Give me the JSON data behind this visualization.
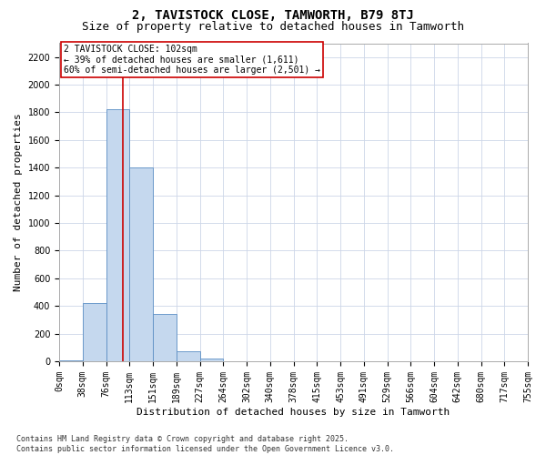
{
  "title_line1": "2, TAVISTOCK CLOSE, TAMWORTH, B79 8TJ",
  "title_line2": "Size of property relative to detached houses in Tamworth",
  "xlabel": "Distribution of detached houses by size in Tamworth",
  "ylabel": "Number of detached properties",
  "bar_values": [
    5,
    420,
    1820,
    1400,
    340,
    75,
    20,
    0,
    0,
    0,
    0,
    0,
    0,
    0,
    0,
    0,
    0,
    0,
    0,
    0
  ],
  "bar_labels": [
    "0sqm",
    "38sqm",
    "76sqm",
    "113sqm",
    "151sqm",
    "189sqm",
    "227sqm",
    "264sqm",
    "302sqm",
    "340sqm",
    "378sqm",
    "415sqm",
    "453sqm",
    "491sqm",
    "529sqm",
    "566sqm",
    "604sqm",
    "642sqm",
    "680sqm",
    "717sqm",
    "755sqm"
  ],
  "bar_color": "#c5d8ee",
  "bar_edge_color": "#5b8ec4",
  "vline_color": "#cc0000",
  "annotation_text": "2 TAVISTOCK CLOSE: 102sqm\n← 39% of detached houses are smaller (1,611)\n60% of semi-detached houses are larger (2,501) →",
  "annotation_box_color": "#ffffff",
  "annotation_box_edge_color": "#cc0000",
  "ylim_max": 2300,
  "yticks": [
    0,
    200,
    400,
    600,
    800,
    1000,
    1200,
    1400,
    1600,
    1800,
    2000,
    2200
  ],
  "grid_color": "#ccd6e8",
  "footnote": "Contains HM Land Registry data © Crown copyright and database right 2025.\nContains public sector information licensed under the Open Government Licence v3.0.",
  "title_fontsize": 10,
  "subtitle_fontsize": 9,
  "axis_label_fontsize": 8,
  "tick_fontsize": 7,
  "annotation_fontsize": 7,
  "footnote_fontsize": 6,
  "fig_bg": "#ffffff"
}
